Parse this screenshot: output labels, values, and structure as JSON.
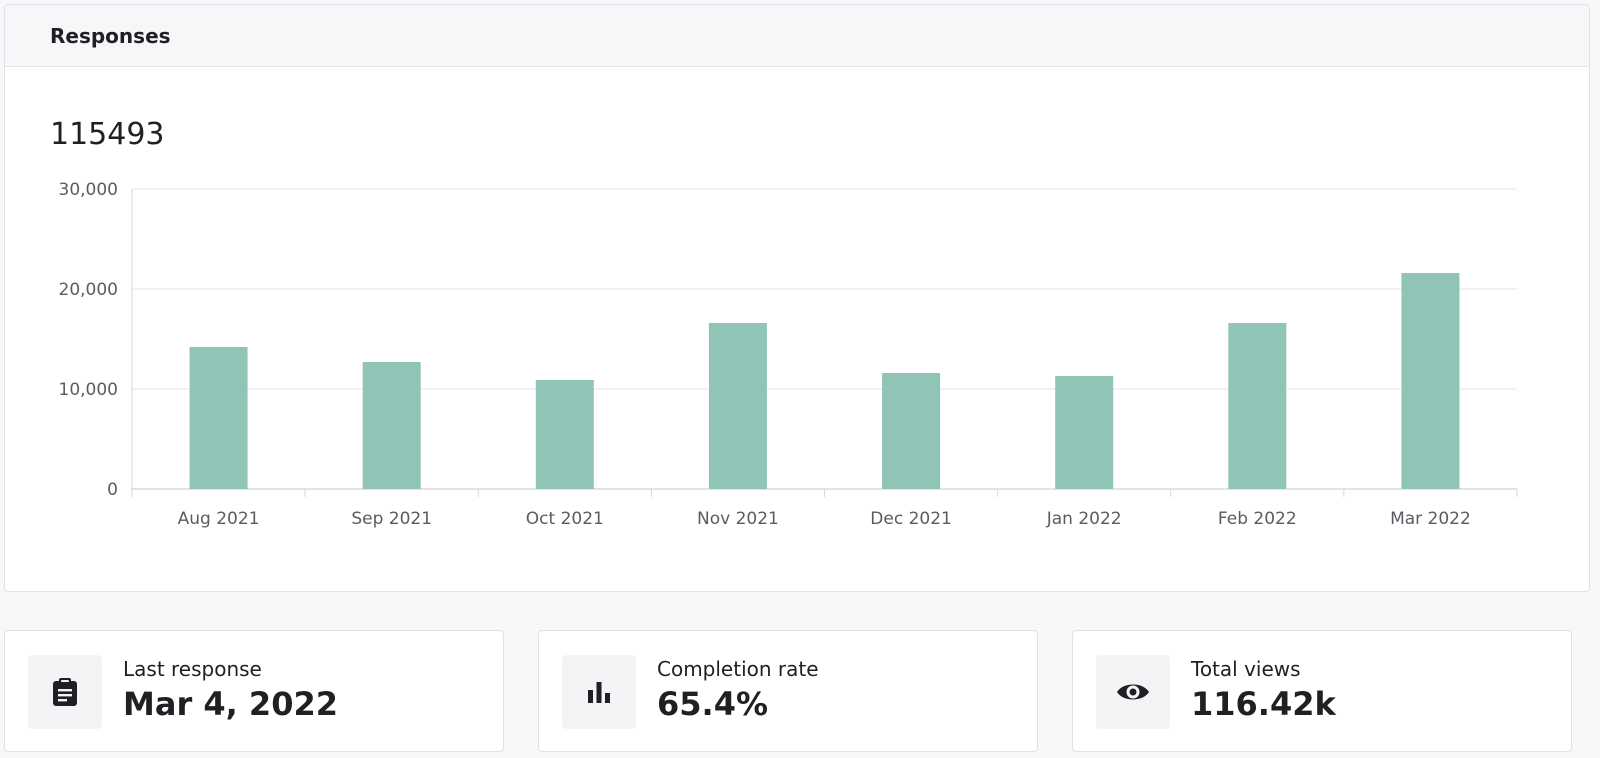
{
  "header": {
    "title": "Responses"
  },
  "total": {
    "count": "115493"
  },
  "chart_data": {
    "type": "bar",
    "categories": [
      "Aug 2021",
      "Sep 2021",
      "Oct 2021",
      "Nov 2021",
      "Dec 2021",
      "Jan 2022",
      "Feb 2022",
      "Mar 2022"
    ],
    "values": [
      14200,
      12700,
      10900,
      16600,
      11600,
      11300,
      16600,
      21600
    ],
    "ylim": [
      0,
      30000
    ],
    "yticks": [
      0,
      10000,
      20000,
      30000
    ],
    "ytick_labels": [
      "0",
      "10,000",
      "20,000",
      "30,000"
    ],
    "title": "",
    "xlabel": "",
    "ylabel": "",
    "grid": true,
    "bar_color": "#8fc4b6"
  },
  "stats": [
    {
      "label": "Last response",
      "value": "Mar 4, 2022",
      "icon": "clipboard-icon"
    },
    {
      "label": "Completion rate",
      "value": "65.4%",
      "icon": "bar-chart-icon"
    },
    {
      "label": "Total views",
      "value": "116.42k",
      "icon": "eye-icon"
    }
  ]
}
